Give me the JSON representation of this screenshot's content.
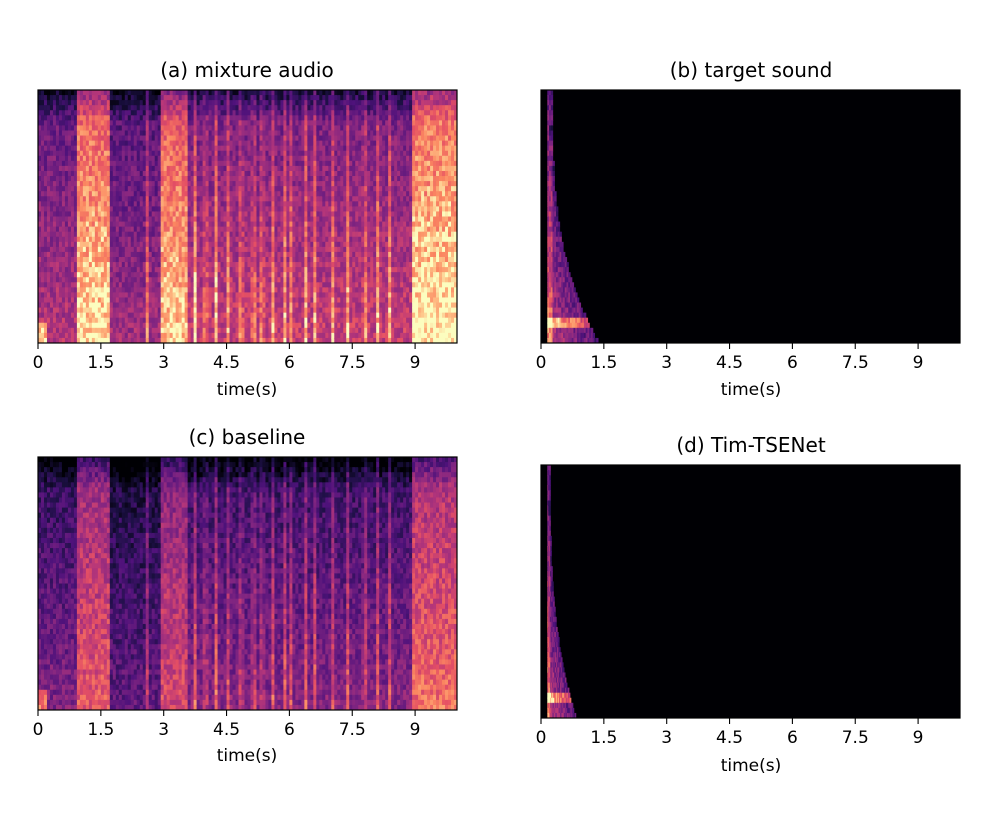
{
  "chart_data": [
    {
      "type": "heatmap",
      "panel": "a",
      "title": "(a) mixture audio",
      "xlabel": "time(s)",
      "ylabel": "",
      "xlim": [
        0,
        10
      ],
      "xticks": [
        0,
        1.5,
        3,
        4.5,
        6,
        7.5,
        9
      ],
      "xticklabels": [
        "0",
        "1.5",
        "3",
        "4.5",
        "6",
        "7.5",
        "9"
      ],
      "colormap": "magma",
      "description_segments": [
        {
          "t0": 0.0,
          "t1": 0.9,
          "level": 0.35
        },
        {
          "t0": 0.9,
          "t1": 1.7,
          "level": 0.75
        },
        {
          "t0": 1.7,
          "t1": 2.9,
          "level": 0.3
        },
        {
          "t0": 2.9,
          "t1": 3.6,
          "level": 0.72
        },
        {
          "t0": 3.6,
          "t1": 8.9,
          "level": 0.4
        },
        {
          "t0": 8.9,
          "t1": 10.0,
          "level": 0.78
        }
      ],
      "onsets": [
        2.6,
        3.75,
        4.0,
        4.25,
        4.55,
        4.85,
        5.15,
        5.35,
        5.6,
        5.9,
        6.05,
        6.4,
        6.6,
        7.05,
        7.4,
        7.8,
        8.1,
        8.4
      ]
    },
    {
      "type": "heatmap",
      "panel": "b",
      "title": "(b) target sound",
      "xlabel": "time(s)",
      "ylabel": "",
      "xlim": [
        0,
        10
      ],
      "xticks": [
        0,
        1.5,
        3,
        4.5,
        6,
        7.5,
        9
      ],
      "xticklabels": [
        "0",
        "1.5",
        "3",
        "4.5",
        "6",
        "7.5",
        "9"
      ],
      "colormap": "magma",
      "active_region_s": [
        0.15,
        1.4
      ]
    },
    {
      "type": "heatmap",
      "panel": "c",
      "title": "(c) baseline",
      "xlabel": "time(s)",
      "ylabel": "",
      "xlim": [
        0,
        10
      ],
      "xticks": [
        0,
        1.5,
        3,
        4.5,
        6,
        7.5,
        9
      ],
      "xticklabels": [
        "0",
        "1.5",
        "3",
        "4.5",
        "6",
        "7.5",
        "9"
      ],
      "colormap": "magma",
      "description_segments": [
        {
          "t0": 0.0,
          "t1": 0.9,
          "level": 0.2
        },
        {
          "t0": 0.9,
          "t1": 1.7,
          "level": 0.5
        },
        {
          "t0": 1.7,
          "t1": 2.9,
          "level": 0.12
        },
        {
          "t0": 2.9,
          "t1": 3.6,
          "level": 0.45
        },
        {
          "t0": 3.6,
          "t1": 8.9,
          "level": 0.22
        },
        {
          "t0": 8.9,
          "t1": 10.0,
          "level": 0.55
        }
      ],
      "onsets": [
        2.6,
        3.75,
        4.0,
        4.25,
        4.55,
        4.85,
        5.15,
        5.35,
        5.6,
        5.9,
        6.05,
        6.4,
        6.6,
        7.05,
        7.4,
        7.8,
        8.1,
        8.4
      ]
    },
    {
      "type": "heatmap",
      "panel": "d",
      "title": "(d) Tim-TSENet",
      "xlabel": "time(s)",
      "ylabel": "",
      "xlim": [
        0,
        10
      ],
      "xticks": [
        0,
        1.5,
        3,
        4.5,
        6,
        7.5,
        9
      ],
      "xticklabels": [
        "0",
        "1.5",
        "3",
        "4.5",
        "6",
        "7.5",
        "9"
      ],
      "colormap": "magma",
      "active_region_s": [
        0.15,
        0.85
      ]
    }
  ]
}
